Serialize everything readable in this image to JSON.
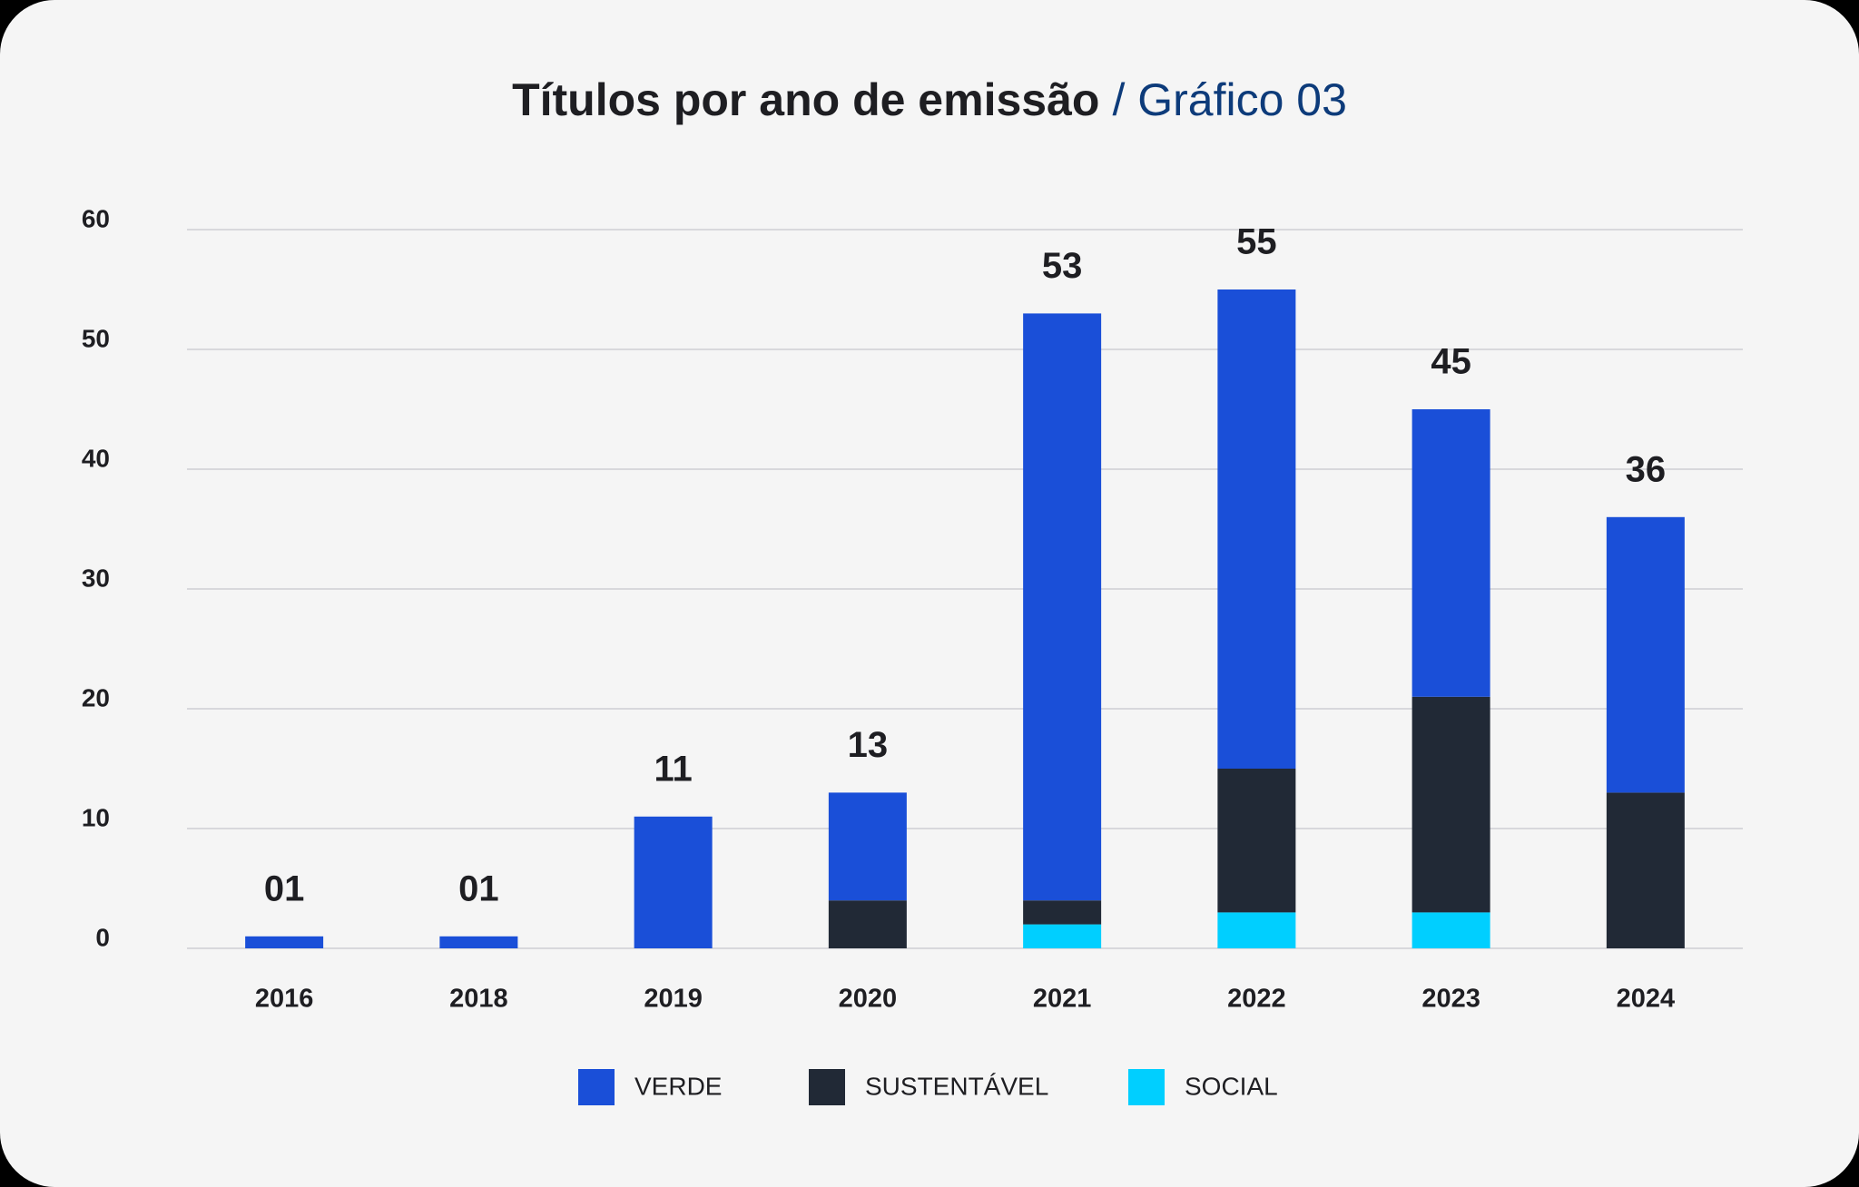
{
  "chart_data": {
    "type": "stacked_bar",
    "title": "Títulos por ano de emissão",
    "subtitle": "/ Gráfico 03",
    "categories": [
      "2016",
      "2018",
      "2019",
      "2020",
      "2021",
      "2022",
      "2023",
      "2024"
    ],
    "series": [
      {
        "name": "SOCIAL",
        "color": "#00cfff",
        "values": [
          0,
          0,
          0,
          0,
          2,
          3,
          3,
          0
        ]
      },
      {
        "name": "SUSTENTÁVEL",
        "color": "#212936",
        "values": [
          0,
          0,
          0,
          4,
          2,
          12,
          18,
          13
        ]
      },
      {
        "name": "VERDE",
        "color": "#1a4fd8",
        "values": [
          1,
          1,
          11,
          9,
          49,
          40,
          24,
          23
        ]
      }
    ],
    "legend_order": [
      2,
      1,
      0
    ],
    "totals": [
      1,
      1,
      11,
      13,
      53,
      55,
      45,
      36
    ],
    "total_labels": [
      "01",
      "01",
      "11",
      "13",
      "53",
      "55",
      "45",
      "36"
    ],
    "ylim": [
      0,
      60
    ],
    "yticks": [
      0,
      10,
      20,
      30,
      40,
      50,
      60
    ],
    "grid": true
  }
}
